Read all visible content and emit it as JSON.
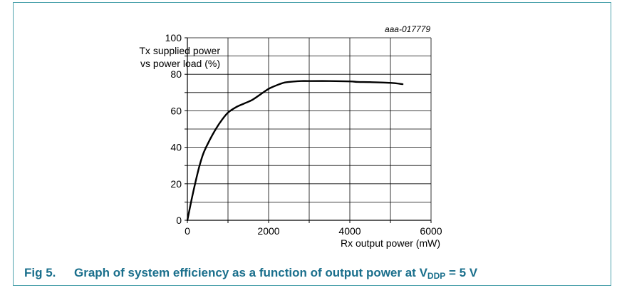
{
  "figure": {
    "id": "aaa-017779",
    "caption_number": "Fig 5.",
    "caption_text_prefix": "Graph of system efficiency as a function of output power at V",
    "caption_subscript": "DDP",
    "caption_text_suffix": " = 5 V"
  },
  "colors": {
    "caption": "#1a6f8c",
    "frame": "#4fa3ad",
    "grid": "#000000",
    "curve": "#000000"
  },
  "chart_data": {
    "type": "line",
    "title": "",
    "xlabel": "Rx output power (mW)",
    "ylabel_lines": [
      "Tx supplied power",
      "vs power load (%)"
    ],
    "xlim": [
      0,
      6000
    ],
    "ylim": [
      0,
      100
    ],
    "x_ticks": [
      0,
      2000,
      4000,
      6000
    ],
    "y_ticks": [
      0,
      20,
      40,
      60,
      80,
      100
    ],
    "x_minor_step": 1000,
    "y_minor_step": 10,
    "grid": true,
    "series": [
      {
        "x": [
          0,
          100,
          200,
          300,
          400,
          550,
          700,
          850,
          1000,
          1200,
          1400,
          1600,
          1800,
          2000,
          2200,
          2400,
          2600,
          2800,
          3000,
          3500,
          4000,
          4200,
          4500,
          5000,
          5300
        ],
        "y": [
          0,
          11,
          21,
          30,
          37,
          44,
          50,
          55,
          59,
          62,
          64,
          66,
          69,
          72,
          74,
          75.5,
          76,
          76.3,
          76.3,
          76.3,
          76.1,
          75.8,
          75.7,
          75.3,
          74.6
        ]
      }
    ]
  }
}
